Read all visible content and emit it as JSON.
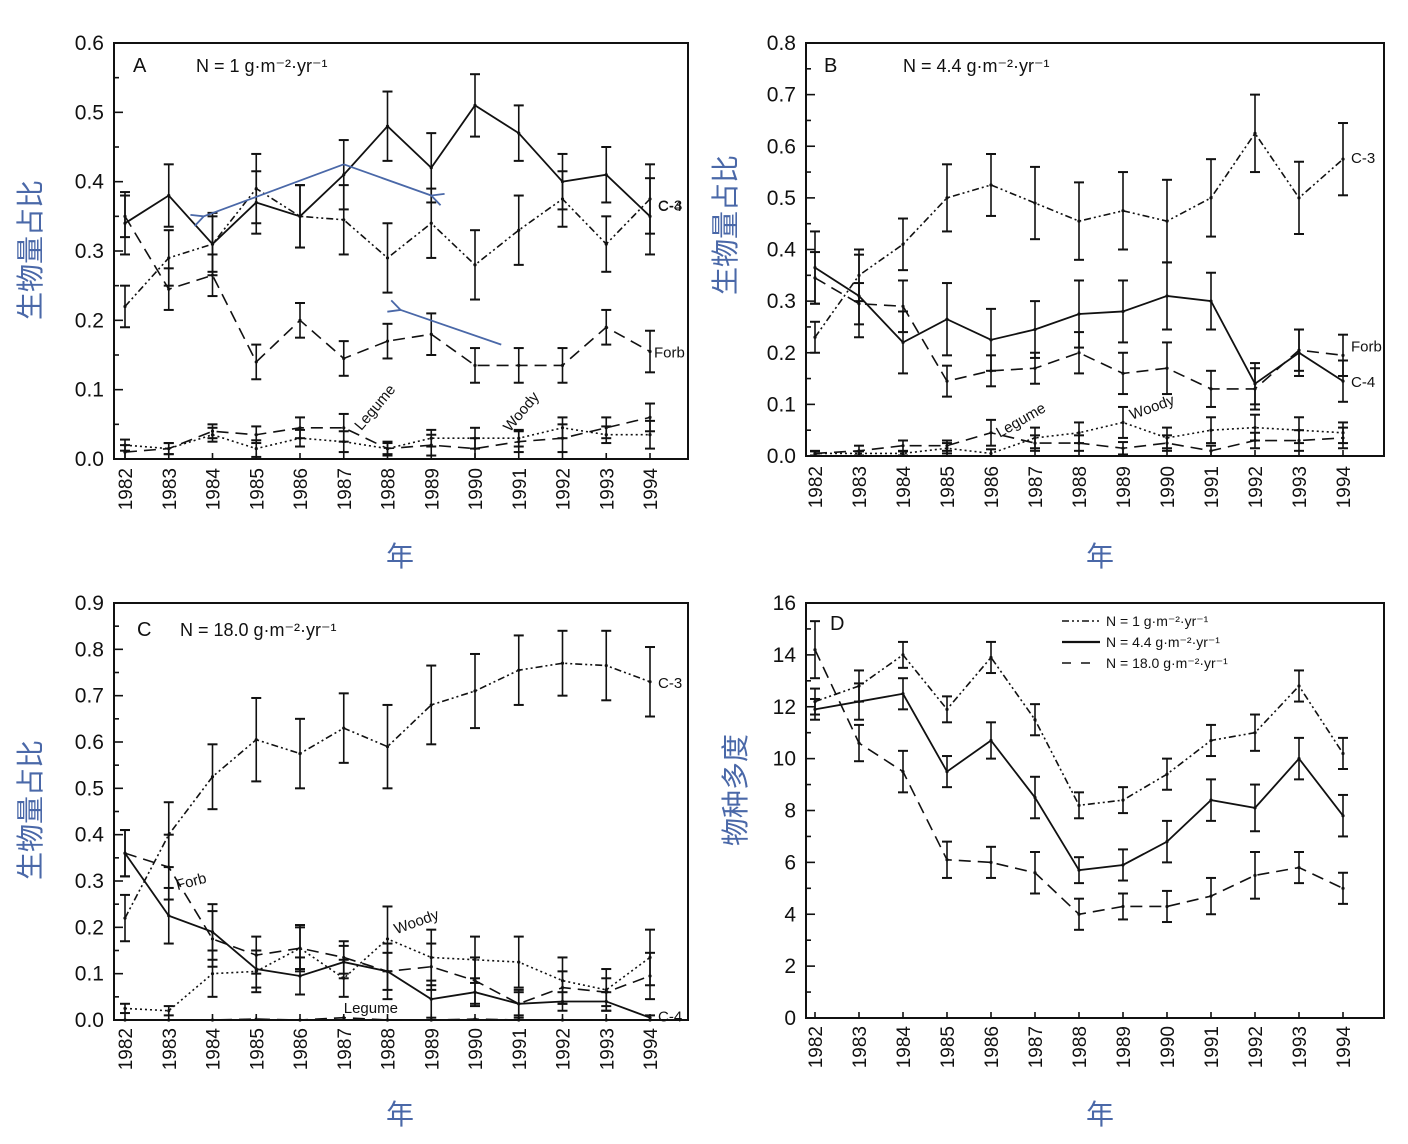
{
  "figure": {
    "x_axis_label": "年",
    "y_axis_label_biomass": "生物量占比",
    "y_axis_label_richness": "物种多度",
    "annotation_color": "#4a68a8"
  },
  "chart_data": [
    {
      "id": "A",
      "type": "line",
      "panel_letter": "A",
      "title": "N = 1 g·m⁻²·yr⁻¹",
      "xlabel": "年",
      "ylabel": "生物量占比",
      "x": [
        1982,
        1983,
        1984,
        1985,
        1986,
        1987,
        1988,
        1989,
        1990,
        1991,
        1992,
        1993,
        1994
      ],
      "ylim": [
        0,
        0.6
      ],
      "yticks": [
        0.0,
        0.1,
        0.2,
        0.3,
        0.4,
        0.5,
        0.6
      ],
      "ytick_labels": [
        "0.0",
        "0.1",
        "0.2",
        "0.3",
        "0.4",
        "0.5",
        "0.6"
      ],
      "series": [
        {
          "name": "C-3",
          "style": "solid",
          "values": [
            0.34,
            0.38,
            0.31,
            0.37,
            0.35,
            0.41,
            0.48,
            0.42,
            0.51,
            0.47,
            0.4,
            0.41,
            0.35
          ],
          "errors": [
            0.045,
            0.045,
            0.04,
            0.045,
            0.045,
            0.05,
            0.05,
            0.05,
            0.045,
            0.04,
            0.04,
            0.04,
            0.055
          ],
          "label_pos": "end"
        },
        {
          "name": "C-4",
          "style": "dashdotdot",
          "values": [
            0.22,
            0.29,
            0.31,
            0.39,
            0.35,
            0.345,
            0.29,
            0.34,
            0.28,
            0.33,
            0.375,
            0.31,
            0.375
          ],
          "errors": [
            0.03,
            0.04,
            0.045,
            0.05,
            0.045,
            0.05,
            0.05,
            0.05,
            0.05,
            0.05,
            0.04,
            0.04,
            0.05
          ],
          "label_pos": "end"
        },
        {
          "name": "Forb",
          "style": "dashed",
          "values": [
            0.35,
            0.245,
            0.265,
            0.14,
            0.2,
            0.145,
            0.17,
            0.18,
            0.135,
            0.135,
            0.135,
            0.19,
            0.155
          ],
          "errors": [
            0.03,
            0.03,
            0.03,
            0.025,
            0.025,
            0.025,
            0.025,
            0.03,
            0.025,
            0.025,
            0.025,
            0.025,
            0.03
          ],
          "label_pos": "end"
        },
        {
          "name": "Legume",
          "style": "dashed",
          "values": [
            0.01,
            0.015,
            0.04,
            0.035,
            0.045,
            0.045,
            0.015,
            0.02,
            0.015,
            0.025,
            0.03,
            0.045,
            0.06
          ],
          "errors": [
            0.01,
            0.008,
            0.01,
            0.012,
            0.015,
            0.02,
            0.01,
            0.015,
            0.015,
            0.015,
            0.02,
            0.015,
            0.02
          ],
          "label_pos": "mid"
        },
        {
          "name": "Woody",
          "style": "dotted",
          "values": [
            0.02,
            0.015,
            0.035,
            0.015,
            0.03,
            0.025,
            0.015,
            0.03,
            0.03,
            0.03,
            0.045,
            0.035,
            0.035
          ],
          "errors": [
            0.008,
            0.008,
            0.01,
            0.012,
            0.012,
            0.015,
            0.008,
            0.012,
            0.015,
            0.012,
            0.015,
            0.012,
            0.02
          ],
          "label_pos": "mid"
        }
      ],
      "annotations": [
        {
          "type": "arrow",
          "from_year": 1987,
          "from_value": 0.425,
          "to_year": 1983.8,
          "to_value": 0.35
        },
        {
          "type": "arrow",
          "from_year": 1987,
          "from_value": 0.425,
          "to_year": 1989,
          "to_value": 0.38
        },
        {
          "type": "arrow",
          "from_year": 1990.6,
          "from_value": 0.165,
          "to_year": 1988.3,
          "to_value": 0.215
        }
      ],
      "grid": false
    },
    {
      "id": "B",
      "type": "line",
      "panel_letter": "B",
      "title": "N = 4.4 g·m⁻²·yr⁻¹",
      "xlabel": "年",
      "ylabel": "生物量占比",
      "x": [
        1982,
        1983,
        1984,
        1985,
        1986,
        1987,
        1988,
        1989,
        1990,
        1991,
        1992,
        1993,
        1994
      ],
      "ylim": [
        0,
        0.8
      ],
      "yticks": [
        0.0,
        0.1,
        0.2,
        0.3,
        0.4,
        0.5,
        0.6,
        0.7,
        0.8
      ],
      "ytick_labels": [
        "0.0",
        "0.1",
        "0.2",
        "0.3",
        "0.4",
        "0.5",
        "0.6",
        "0.7",
        "0.8"
      ],
      "series": [
        {
          "name": "C-3",
          "style": "dashdotdot",
          "values": [
            0.23,
            0.35,
            0.41,
            0.5,
            0.525,
            0.49,
            0.455,
            0.475,
            0.455,
            0.5,
            0.625,
            0.5,
            0.575
          ],
          "errors": [
            0.03,
            0.05,
            0.05,
            0.065,
            0.06,
            0.07,
            0.075,
            0.075,
            0.08,
            0.075,
            0.075,
            0.07,
            0.07
          ],
          "label_pos": "end"
        },
        {
          "name": "C-4",
          "style": "solid",
          "values": [
            0.365,
            0.31,
            0.22,
            0.265,
            0.225,
            0.245,
            0.275,
            0.28,
            0.31,
            0.3,
            0.14,
            0.2,
            0.145
          ],
          "errors": [
            0.07,
            0.08,
            0.06,
            0.07,
            0.06,
            0.055,
            0.065,
            0.06,
            0.065,
            0.055,
            0.04,
            0.045,
            0.04
          ],
          "label_pos": "end"
        },
        {
          "name": "Forb",
          "style": "dashed",
          "values": [
            0.345,
            0.295,
            0.29,
            0.145,
            0.165,
            0.17,
            0.2,
            0.16,
            0.17,
            0.13,
            0.13,
            0.205,
            0.195
          ],
          "errors": [
            0.05,
            0.04,
            0.05,
            0.03,
            0.03,
            0.03,
            0.04,
            0.04,
            0.05,
            0.035,
            0.04,
            0.04,
            0.04
          ],
          "label_pos": "end"
        },
        {
          "name": "Legume",
          "style": "dashed",
          "values": [
            0.005,
            0.01,
            0.02,
            0.02,
            0.045,
            0.025,
            0.025,
            0.015,
            0.025,
            0.01,
            0.03,
            0.03,
            0.035
          ],
          "errors": [
            0.005,
            0.01,
            0.01,
            0.01,
            0.025,
            0.015,
            0.015,
            0.012,
            0.015,
            0.01,
            0.015,
            0.02,
            0.02
          ],
          "label_pos": "mid"
        },
        {
          "name": "Woody",
          "style": "dotted",
          "values": [
            0.005,
            0.005,
            0.005,
            0.015,
            0.005,
            0.035,
            0.045,
            0.065,
            0.035,
            0.05,
            0.055,
            0.05,
            0.045
          ],
          "errors": [
            0.004,
            0.004,
            0.004,
            0.01,
            0.008,
            0.02,
            0.02,
            0.03,
            0.02,
            0.025,
            0.025,
            0.025,
            0.02
          ],
          "label_pos": "mid"
        }
      ],
      "grid": false
    },
    {
      "id": "C",
      "type": "line",
      "panel_letter": "C",
      "title": "N = 18.0 g·m⁻²·yr⁻¹",
      "xlabel": "年",
      "ylabel": "生物量占比",
      "x": [
        1982,
        1983,
        1984,
        1985,
        1986,
        1987,
        1988,
        1989,
        1990,
        1991,
        1992,
        1993,
        1994
      ],
      "ylim": [
        0,
        0.9
      ],
      "yticks": [
        0.0,
        0.1,
        0.2,
        0.3,
        0.4,
        0.5,
        0.6,
        0.7,
        0.8,
        0.9
      ],
      "ytick_labels": [
        "0.0",
        "0.1",
        "0.2",
        "0.3",
        "0.4",
        "0.5",
        "0.6",
        "0.7",
        "0.8",
        "0.9"
      ],
      "series": [
        {
          "name": "C-3",
          "style": "dashdotdot",
          "values": [
            0.22,
            0.4,
            0.525,
            0.605,
            0.575,
            0.63,
            0.59,
            0.68,
            0.71,
            0.755,
            0.77,
            0.765,
            0.73
          ],
          "errors": [
            0.05,
            0.07,
            0.07,
            0.09,
            0.075,
            0.075,
            0.09,
            0.085,
            0.08,
            0.075,
            0.07,
            0.075,
            0.075
          ],
          "label_pos": "end"
        },
        {
          "name": "C-4",
          "style": "solid",
          "values": [
            0.36,
            0.225,
            0.19,
            0.11,
            0.095,
            0.125,
            0.105,
            0.045,
            0.06,
            0.035,
            0.04,
            0.04,
            0.005
          ],
          "errors": [
            0.05,
            0.06,
            0.06,
            0.04,
            0.04,
            0.035,
            0.04,
            0.04,
            0.03,
            0.025,
            0.02,
            0.02,
            0.005
          ],
          "label_pos": "end"
        },
        {
          "name": "Forb",
          "style": "dashed",
          "values": [
            0.36,
            0.33,
            0.175,
            0.14,
            0.155,
            0.135,
            0.105,
            0.115,
            0.085,
            0.035,
            0.07,
            0.06,
            0.095
          ],
          "errors": [
            0.05,
            0.07,
            0.06,
            0.04,
            0.045,
            0.035,
            0.06,
            0.05,
            0.05,
            0.03,
            0.035,
            0.03,
            0.05
          ],
          "label_pos": "start"
        },
        {
          "name": "Woody",
          "style": "dotted",
          "values": [
            0.025,
            0.02,
            0.1,
            0.105,
            0.155,
            0.09,
            0.175,
            0.135,
            0.13,
            0.125,
            0.085,
            0.065,
            0.135
          ],
          "errors": [
            0.01,
            0.01,
            0.05,
            0.045,
            0.05,
            0.04,
            0.07,
            0.06,
            0.05,
            0.055,
            0.05,
            0.045,
            0.06
          ],
          "label_pos": "mid"
        },
        {
          "name": "Legume",
          "style": "dashed",
          "values": [
            0.0,
            0.0,
            0.0,
            0.002,
            0.0,
            0.005,
            0.0,
            0.0,
            0.002,
            0.0,
            0.0,
            0.0,
            0.0
          ],
          "errors": [
            0,
            0,
            0,
            0,
            0,
            0,
            0,
            0,
            0,
            0,
            0,
            0,
            0
          ],
          "label_pos": "mid"
        }
      ],
      "grid": false
    },
    {
      "id": "D",
      "type": "line",
      "panel_letter": "D",
      "title": "",
      "xlabel": "年",
      "ylabel": "物种多度",
      "x": [
        1982,
        1983,
        1984,
        1985,
        1986,
        1987,
        1988,
        1989,
        1990,
        1991,
        1992,
        1993,
        1994
      ],
      "ylim": [
        0,
        16
      ],
      "yticks": [
        0,
        2,
        4,
        6,
        8,
        10,
        12,
        14,
        16
      ],
      "ytick_labels": [
        "0",
        "2",
        "4",
        "6",
        "8",
        "10",
        "12",
        "14",
        "16"
      ],
      "legend_position": "top-right",
      "series": [
        {
          "name": "N = 1 g·m⁻²·yr⁻¹",
          "style": "dashdotdot",
          "values": [
            12.2,
            12.8,
            14.0,
            11.9,
            13.9,
            11.5,
            8.2,
            8.4,
            9.4,
            10.7,
            11.0,
            12.8,
            10.2
          ],
          "errors": [
            0.5,
            0.6,
            0.5,
            0.5,
            0.6,
            0.6,
            0.5,
            0.5,
            0.6,
            0.6,
            0.7,
            0.6,
            0.6
          ]
        },
        {
          "name": "N = 4.4 g·m⁻²·yr⁻¹",
          "style": "solid",
          "values": [
            11.9,
            12.2,
            12.5,
            9.5,
            10.7,
            8.5,
            5.7,
            5.9,
            6.8,
            8.4,
            8.1,
            10.0,
            7.8
          ],
          "errors": [
            0.4,
            0.7,
            0.6,
            0.6,
            0.7,
            0.8,
            0.5,
            0.6,
            0.8,
            0.8,
            0.9,
            0.8,
            0.8
          ]
        },
        {
          "name": "N = 18.0 g·m⁻²·yr⁻¹",
          "style": "dashed",
          "values": [
            14.2,
            10.6,
            9.5,
            6.1,
            6.0,
            5.6,
            4.0,
            4.3,
            4.3,
            4.7,
            5.5,
            5.8,
            5.0
          ],
          "errors": [
            1.1,
            0.7,
            0.8,
            0.7,
            0.6,
            0.8,
            0.6,
            0.5,
            0.6,
            0.7,
            0.9,
            0.6,
            0.6
          ]
        }
      ],
      "grid": false
    }
  ]
}
